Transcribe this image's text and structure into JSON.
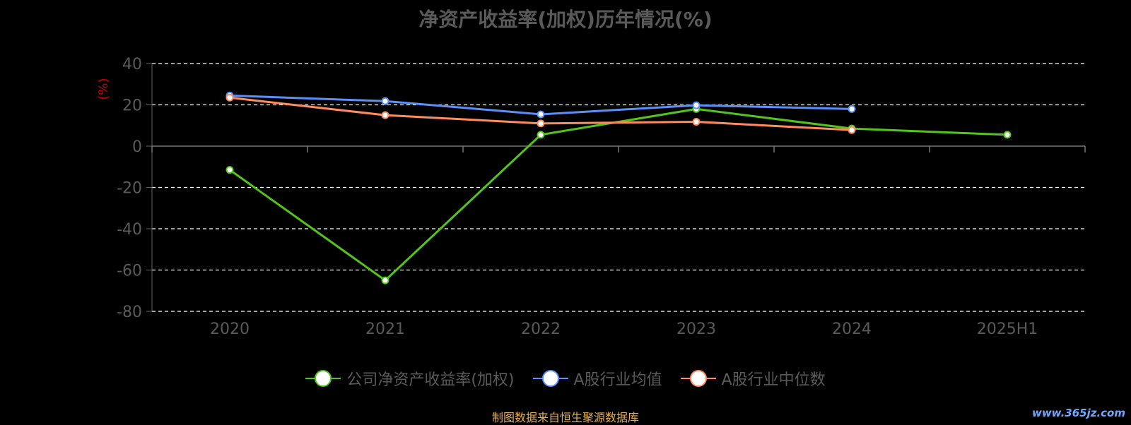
{
  "chart_data": {
    "type": "line",
    "title": "净资产收益率(加权)历年情况(%)",
    "ylabel": "(%)",
    "xlabel": "",
    "categories": [
      "2020",
      "2021",
      "2022",
      "2023",
      "2024",
      "2025H1"
    ],
    "ylim": [
      -80,
      40
    ],
    "yticks": [
      40,
      20,
      0,
      -20,
      -40,
      -60,
      -80
    ],
    "grid": true,
    "legend_position": "bottom",
    "series": [
      {
        "name": "公司净资产收益率(加权)",
        "color": "#52c41a",
        "values": [
          -11.5,
          -65.0,
          5.5,
          18.0,
          8.5,
          5.5
        ]
      },
      {
        "name": "A股行业均值",
        "color": "#5b8ff9",
        "values": [
          24.5,
          21.8,
          15.4,
          19.8,
          18.0,
          null
        ]
      },
      {
        "name": "A股行业中位数",
        "color": "#ff8c5a",
        "values": [
          23.5,
          15.0,
          11.0,
          11.8,
          7.8,
          null
        ]
      }
    ]
  },
  "source_note": "制图数据来自恒生聚源数据库",
  "watermark": "www.365jz.com"
}
